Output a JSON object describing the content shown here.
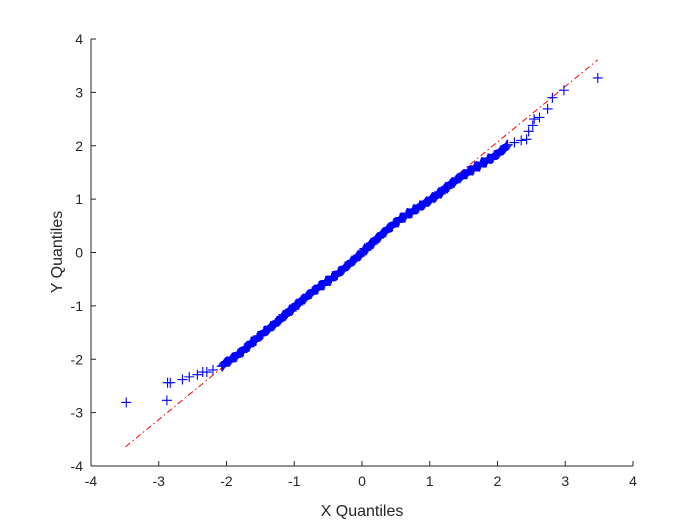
{
  "chart_data": {
    "type": "scatter",
    "title": "",
    "xlabel": "X Quantiles",
    "ylabel": "Y Quantiles",
    "xlim": [
      -4,
      4
    ],
    "ylim": [
      -4,
      4
    ],
    "grid": false,
    "legend": null,
    "xticks": [
      "-4",
      "-3",
      "-2",
      "-1",
      "0",
      "1",
      "2",
      "3",
      "4"
    ],
    "yticks": [
      "-4",
      "-3",
      "-2",
      "-1",
      "0",
      "1",
      "2",
      "3",
      "4"
    ],
    "marker": "+",
    "marker_color": "#0000ff",
    "reference_line": {
      "style": "dash-dot",
      "color": "#ff0000",
      "x": [
        -3.49,
        3.48
      ],
      "y": [
        -3.64,
        3.61
      ]
    },
    "series": [
      {
        "name": "sample quantiles",
        "points": [
          [
            -3.48,
            -2.81
          ],
          [
            -2.88,
            -2.77
          ],
          [
            -2.87,
            -2.44
          ],
          [
            -2.83,
            -2.44
          ],
          [
            -2.65,
            -2.38
          ],
          [
            -2.55,
            -2.33
          ],
          [
            -2.43,
            -2.29
          ],
          [
            -2.35,
            -2.24
          ],
          [
            -2.29,
            -2.24
          ],
          [
            -2.2,
            -2.2
          ],
          [
            -2.07,
            -2.13
          ],
          [
            -1.96,
            -2.05
          ],
          [
            -1.85,
            -1.95
          ],
          [
            -1.75,
            -1.85
          ],
          [
            -1.65,
            -1.72
          ],
          [
            -1.55,
            -1.6
          ],
          [
            -1.45,
            -1.48
          ],
          [
            -1.35,
            -1.38
          ],
          [
            -1.25,
            -1.28
          ],
          [
            -1.15,
            -1.17
          ],
          [
            -1.05,
            -1.08
          ],
          [
            -0.95,
            -0.98
          ],
          [
            -0.85,
            -0.88
          ],
          [
            -0.75,
            -0.78
          ],
          [
            -0.65,
            -0.68
          ],
          [
            -0.55,
            -0.58
          ],
          [
            -0.45,
            -0.48
          ],
          [
            -0.35,
            -0.37
          ],
          [
            -0.25,
            -0.26
          ],
          [
            -0.15,
            -0.15
          ],
          [
            -0.05,
            -0.05
          ],
          [
            0.05,
            0.06
          ],
          [
            0.15,
            0.16
          ],
          [
            0.25,
            0.27
          ],
          [
            0.35,
            0.38
          ],
          [
            0.45,
            0.49
          ],
          [
            0.55,
            0.6
          ],
          [
            0.65,
            0.7
          ],
          [
            0.75,
            0.79
          ],
          [
            0.85,
            0.88
          ],
          [
            0.95,
            0.96
          ],
          [
            1.05,
            1.04
          ],
          [
            1.15,
            1.12
          ],
          [
            1.25,
            1.21
          ],
          [
            1.35,
            1.3
          ],
          [
            1.45,
            1.39
          ],
          [
            1.55,
            1.47
          ],
          [
            1.65,
            1.56
          ],
          [
            1.75,
            1.65
          ],
          [
            1.85,
            1.74
          ],
          [
            1.95,
            1.82
          ],
          [
            2.05,
            1.92
          ],
          [
            2.15,
            2.02
          ],
          [
            2.25,
            2.06
          ],
          [
            2.35,
            2.1
          ],
          [
            2.43,
            2.12
          ],
          [
            2.46,
            2.27
          ],
          [
            2.52,
            2.38
          ],
          [
            2.54,
            2.5
          ],
          [
            2.62,
            2.53
          ],
          [
            2.74,
            2.69
          ],
          [
            2.81,
            2.9
          ],
          [
            2.98,
            3.04
          ],
          [
            3.48,
            3.27
          ]
        ]
      }
    ]
  }
}
